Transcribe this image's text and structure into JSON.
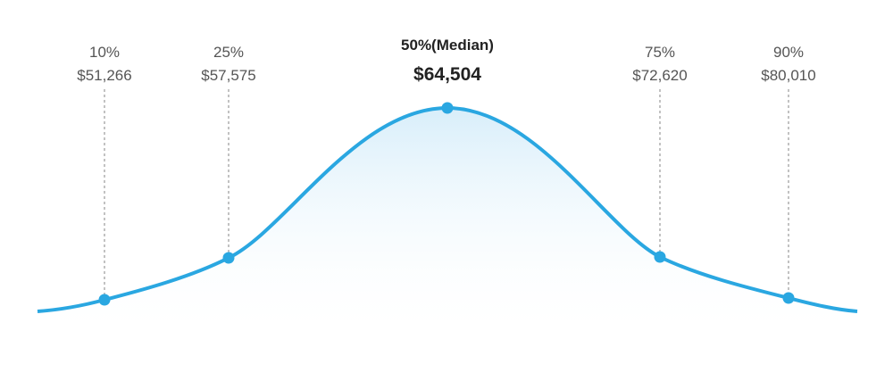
{
  "percentiles": [
    {
      "percent": "10%",
      "salary": "$51,266"
    },
    {
      "percent": "25%",
      "salary": "$57,575"
    },
    {
      "percent": "50%(Median)",
      "salary": "$64,504"
    },
    {
      "percent": "75%",
      "salary": "$72,620"
    },
    {
      "percent": "90%",
      "salary": "$80,010"
    }
  ]
}
